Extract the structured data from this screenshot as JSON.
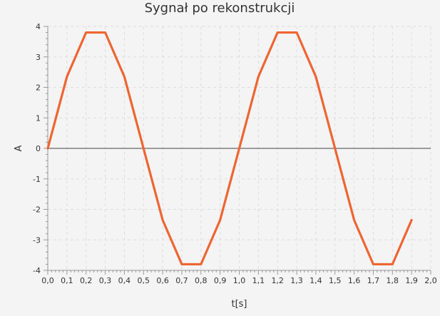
{
  "chart_data": {
    "type": "line",
    "title": "Sygnał po rekonstrukcji",
    "xlabel": "t[s]",
    "ylabel": "A",
    "xlim": [
      0.0,
      2.0
    ],
    "ylim": [
      -4,
      4
    ],
    "xticks": [
      "0,0",
      "0,1",
      "0,2",
      "0,3",
      "0,4",
      "0,5",
      "0,6",
      "0,7",
      "0,8",
      "0,9",
      "1,0",
      "1,1",
      "1,2",
      "1,3",
      "1,4",
      "1,5",
      "1,6",
      "1,7",
      "1,8",
      "1,9",
      "2,0"
    ],
    "yticks": [
      "4",
      "3",
      "2",
      "1",
      "0",
      "-1",
      "-2",
      "-3",
      "-4"
    ],
    "grid": true,
    "colors": {
      "series": "#ee6531",
      "zero_line": "#666666",
      "grid": "#dddddd"
    },
    "series": [
      {
        "x": [
          0.0,
          0.1,
          0.2,
          0.3,
          0.4,
          0.5,
          0.6,
          0.7,
          0.8,
          0.9,
          1.0,
          1.1,
          1.2,
          1.3,
          1.4,
          1.5,
          1.6,
          1.7,
          1.8,
          1.9
        ],
        "y": [
          0.0,
          2.35,
          3.8,
          3.8,
          2.35,
          0.0,
          -2.35,
          -3.8,
          -3.8,
          -2.35,
          0.0,
          2.35,
          3.8,
          3.8,
          2.35,
          0.0,
          -2.35,
          -3.8,
          -3.8,
          -2.35
        ]
      }
    ]
  }
}
